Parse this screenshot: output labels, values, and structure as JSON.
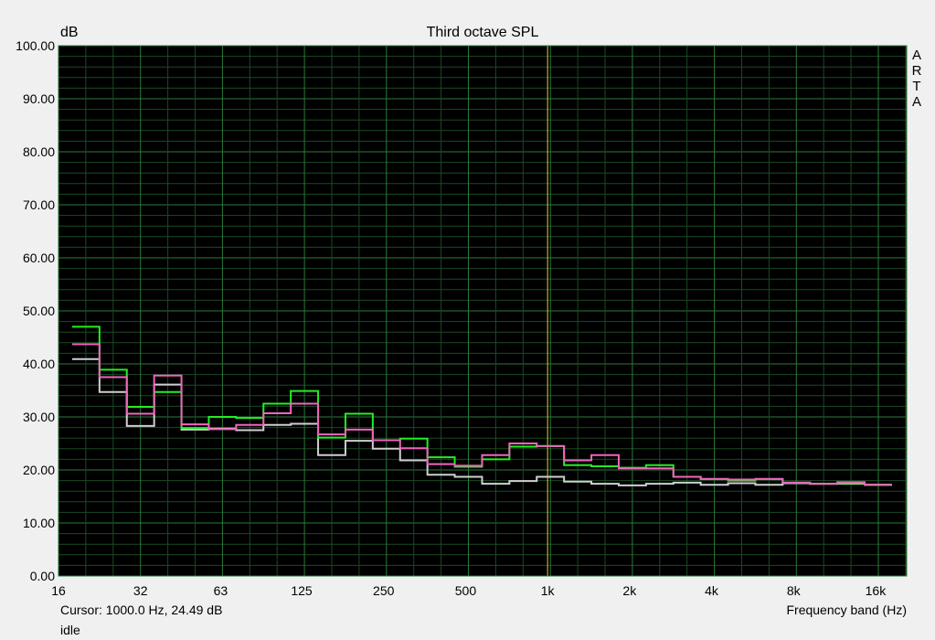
{
  "chart_data": {
    "type": "line",
    "step": true,
    "title": "Third octave SPL",
    "ylabel": "dB",
    "xlabel": "Frequency band (Hz)",
    "ylim": [
      0,
      100
    ],
    "xlim": [
      16,
      20000
    ],
    "xscale": "log",
    "grid": true,
    "y_ticks": [
      "0.00",
      "10.00",
      "20.00",
      "30.00",
      "40.00",
      "50.00",
      "60.00",
      "70.00",
      "80.00",
      "90.00",
      "100.00"
    ],
    "x_ticks": [
      {
        "f": 16,
        "label": "16"
      },
      {
        "f": 32,
        "label": "32"
      },
      {
        "f": 63,
        "label": "63"
      },
      {
        "f": 125,
        "label": "125"
      },
      {
        "f": 250,
        "label": "250"
      },
      {
        "f": 500,
        "label": "500"
      },
      {
        "f": 1000,
        "label": "1k"
      },
      {
        "f": 2000,
        "label": "2k"
      },
      {
        "f": 4000,
        "label": "4k"
      },
      {
        "f": 8000,
        "label": "8k"
      },
      {
        "f": 16000,
        "label": "16k"
      }
    ],
    "x": [
      20,
      25,
      31.5,
      40,
      50,
      63,
      80,
      100,
      125,
      160,
      200,
      250,
      315,
      400,
      500,
      630,
      800,
      1000,
      1250,
      1600,
      2000,
      2500,
      3150,
      4000,
      5000,
      6300,
      8000,
      10000,
      12500,
      16000
    ],
    "series": [
      {
        "color": "#cfcfcf",
        "values": [
          40.9,
          34.7,
          28.3,
          36.1,
          27.6,
          27.8,
          27.5,
          28.5,
          28.7,
          22.8,
          25.5,
          24.0,
          21.8,
          19.1,
          18.7,
          17.4,
          17.9,
          18.7,
          17.8,
          17.4,
          17.1,
          17.4,
          17.6,
          17.2,
          17.5,
          17.2,
          17.5,
          17.4,
          17.4,
          17.2
        ]
      },
      {
        "color": "#22ee22",
        "values": [
          47.0,
          38.9,
          31.9,
          34.7,
          27.9,
          30.0,
          29.8,
          32.5,
          34.9,
          26.1,
          30.6,
          25.6,
          25.9,
          22.4,
          20.6,
          22.0,
          24.4,
          24.5,
          20.9,
          20.7,
          20.4,
          20.9,
          18.7,
          18.3,
          18.0,
          18.3,
          17.6,
          17.4,
          17.5,
          17.2
        ]
      },
      {
        "color": "#ee66bb",
        "values": [
          43.7,
          37.5,
          30.6,
          37.8,
          28.6,
          27.7,
          28.5,
          30.7,
          32.5,
          26.7,
          27.6,
          25.6,
          24.1,
          21.1,
          20.8,
          22.8,
          25.0,
          24.5,
          21.8,
          22.8,
          20.3,
          20.3,
          18.7,
          18.3,
          18.2,
          18.3,
          17.6,
          17.4,
          17.7,
          17.2
        ]
      }
    ],
    "cursor": {
      "f": 1000,
      "color": "#d8d040"
    }
  },
  "watermark": "ARTA",
  "status": {
    "cursor": "Cursor:  1000.0 Hz, 24.49 dB",
    "state": "idle"
  }
}
